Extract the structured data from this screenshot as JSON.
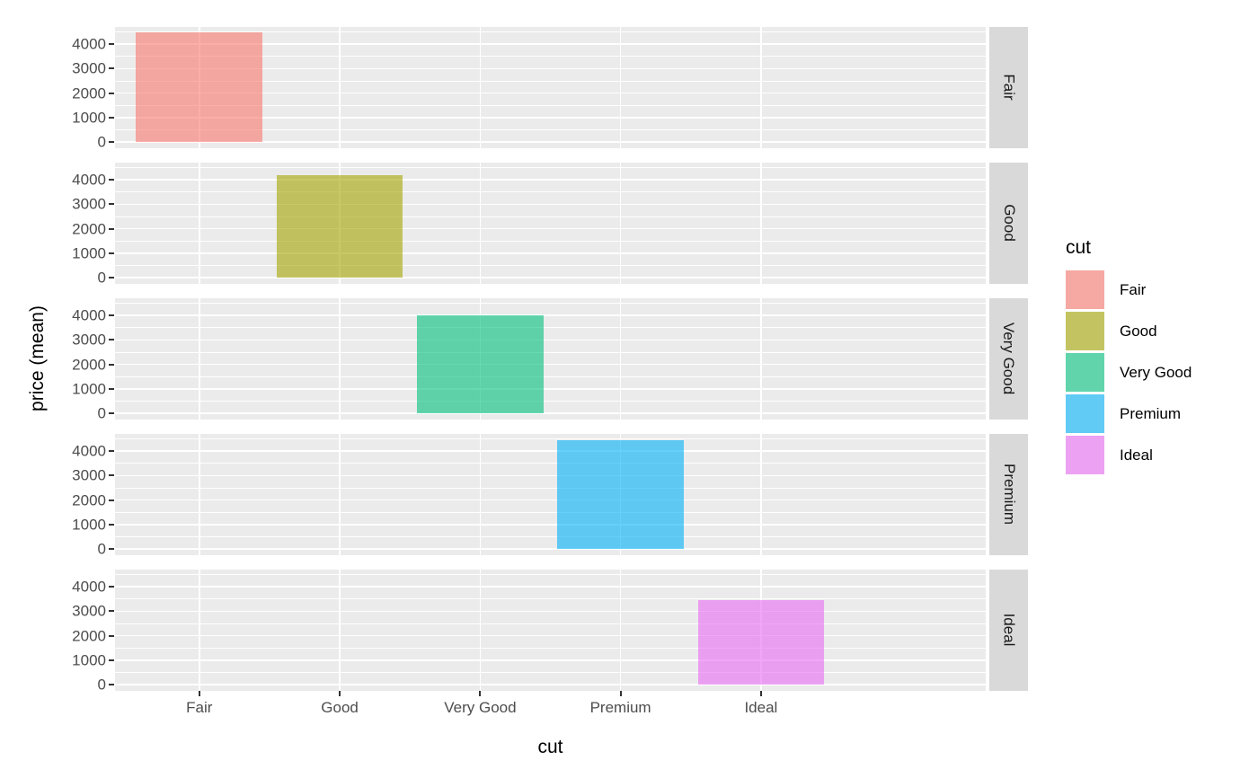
{
  "chart_data": {
    "type": "bar",
    "title": "",
    "xlabel": "cut",
    "ylabel": "price (mean)",
    "categories": [
      "Fair",
      "Good",
      "Very Good",
      "Premium",
      "Ideal"
    ],
    "values": [
      4470,
      4190,
      3990,
      4460,
      3470
    ],
    "facet_labels": [
      "Fair",
      "Good",
      "Very Good",
      "Premium",
      "Ideal"
    ],
    "facet_orientation": "rows",
    "y_major_ticks": [
      0,
      1000,
      2000,
      3000,
      4000
    ],
    "y_minor_gridlines": [
      500,
      1500,
      2500,
      3500,
      4500
    ],
    "ylim": [
      -234,
      4704
    ],
    "grid": true,
    "bar_colors": [
      "#F8766D",
      "#A3A500",
      "#00BF7D",
      "#00B0F6",
      "#E76BF3"
    ],
    "fill_alpha": 0.6,
    "legend": {
      "title": "cut",
      "position": "right",
      "entries": [
        {
          "label": "Fair",
          "color": "#F8766D"
        },
        {
          "label": "Good",
          "color": "#A3A500"
        },
        {
          "label": "Very Good",
          "color": "#00BF7D"
        },
        {
          "label": "Premium",
          "color": "#00B0F6"
        },
        {
          "label": "Ideal",
          "color": "#E76BF3"
        }
      ]
    },
    "theme": {
      "panel_bg": "#EBEBEB",
      "grid_color": "#FFFFFF",
      "strip_bg": "#D9D9D9",
      "strip_text_color": "#1A1A1A",
      "axis_text_color": "#4D4D4D",
      "tick_mark_color": "#333333"
    }
  }
}
